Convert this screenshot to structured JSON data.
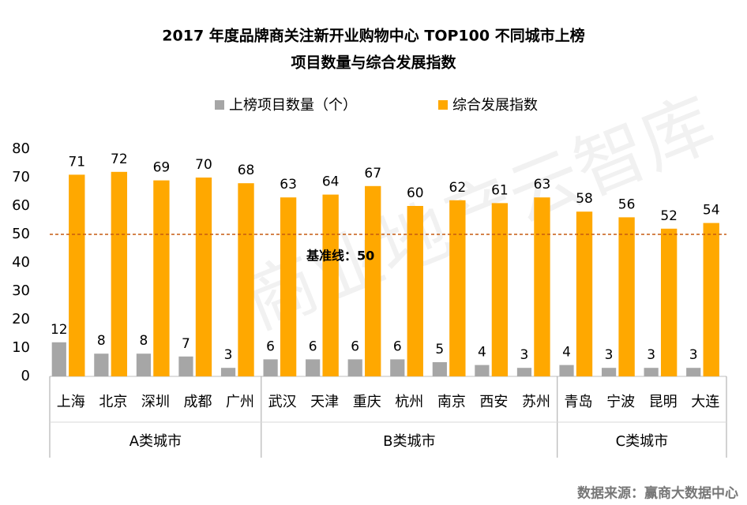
{
  "chart_data": {
    "type": "bar",
    "title": "2017 年度品牌商关注新开业购物中心 TOP100 不同城市上榜",
    "subtitle": "项目数量与综合发展指数",
    "categories": [
      "上海",
      "北京",
      "深圳",
      "成都",
      "广州",
      "武汉",
      "天津",
      "重庆",
      "杭州",
      "南京",
      "西安",
      "苏州",
      "青岛",
      "宁波",
      "昆明",
      "大连"
    ],
    "series": [
      {
        "name": "上榜项目数量（个）",
        "color": "#a6a6a6",
        "values": [
          12,
          8,
          8,
          7,
          3,
          6,
          6,
          6,
          6,
          5,
          4,
          3,
          4,
          3,
          3,
          3
        ]
      },
      {
        "name": "综合发展指数",
        "color": "#ffa800",
        "values": [
          71,
          72,
          69,
          70,
          68,
          63,
          64,
          67,
          60,
          62,
          61,
          63,
          58,
          56,
          52,
          54
        ]
      }
    ],
    "groups": [
      {
        "name": "A类城市",
        "count": 5
      },
      {
        "name": "B类城市",
        "count": 7
      },
      {
        "name": "C类城市",
        "count": 4
      }
    ],
    "reference_line": {
      "value": 50,
      "label": "基准线：50",
      "color": "#c55a11"
    },
    "ylim": [
      0,
      80
    ],
    "yticks": [
      0,
      10,
      20,
      30,
      40,
      50,
      60,
      70,
      80
    ],
    "legend": "top",
    "watermark": "商业地产云智库",
    "source": "数据来源：赢商大数据中心"
  }
}
